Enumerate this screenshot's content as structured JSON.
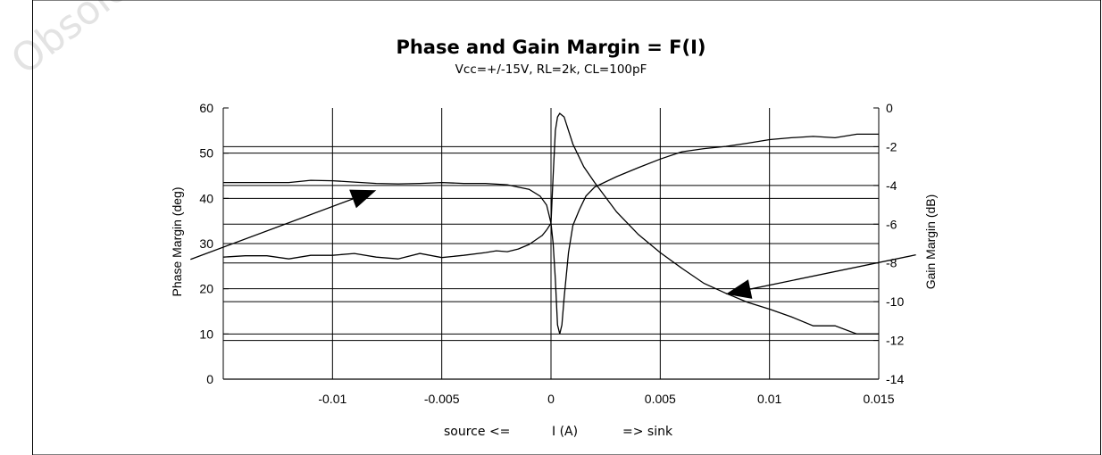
{
  "watermark": "Obsolete",
  "chart_data": {
    "type": "line",
    "title": "Phase and Gain Margin = F(I)",
    "subtitle": "Vcc=+/-15V, RL=2k, CL=100pF",
    "xlabel_parts": [
      "source <=",
      "I (A)",
      "=> sink"
    ],
    "ylabel_left": "Phase Margin (deg)",
    "ylabel_right": "Gain Margin (dB)",
    "xlim": [
      -0.015,
      0.015
    ],
    "ylim_left": [
      0,
      60
    ],
    "ylim_right": [
      -14,
      0
    ],
    "x_ticks": [
      -0.01,
      -0.005,
      0,
      0.005,
      0.01,
      0.015
    ],
    "x_tick_labels": [
      "-0.01",
      "-0.005",
      "0",
      "0.005",
      "0.01",
      "0.015"
    ],
    "x_gridlines": [
      -0.01,
      -0.005,
      0,
      0.005,
      0.01
    ],
    "y_left_ticks": [
      0,
      10,
      20,
      30,
      40,
      50,
      60
    ],
    "y_left_tick_labels": [
      "0",
      "10",
      "20",
      "30",
      "40",
      "50",
      "60"
    ],
    "y_right_ticks": [
      0,
      -2,
      -4,
      -6,
      -8,
      -10,
      -12,
      -14
    ],
    "y_right_tick_labels": [
      "0",
      "-2",
      "-4",
      "-6",
      "-8",
      "-10",
      "-12",
      "-14"
    ],
    "y_right_gridlines": [
      -2,
      -4,
      -6,
      -8,
      -10,
      -12
    ],
    "y_left_gridlines": [
      10,
      20,
      30,
      40,
      50
    ],
    "series": [
      {
        "axis": "left",
        "values": [
          [
            -0.015,
            43.5
          ],
          [
            -0.012,
            43.5
          ],
          [
            -0.011,
            44.0
          ],
          [
            -0.01,
            43.9
          ],
          [
            -0.009,
            43.6
          ],
          [
            -0.008,
            43.3
          ],
          [
            -0.007,
            43.2
          ],
          [
            -0.006,
            43.3
          ],
          [
            -0.005,
            43.5
          ],
          [
            -0.004,
            43.3
          ],
          [
            -0.003,
            43.3
          ],
          [
            -0.002,
            43.0
          ],
          [
            -0.0015,
            42.5
          ],
          [
            -0.001,
            42.0
          ],
          [
            -0.0005,
            40.5
          ],
          [
            -0.0002,
            38.5
          ],
          [
            -0.0001,
            36.5
          ],
          [
            0,
            34.5
          ],
          [
            0.0001,
            30.0
          ],
          [
            0.0002,
            22.0
          ],
          [
            0.0003,
            12.0
          ],
          [
            0.0004,
            10.0
          ],
          [
            0.0005,
            12.0
          ],
          [
            0.0006,
            18.0
          ],
          [
            0.0008,
            28.0
          ],
          [
            0.001,
            34.0
          ],
          [
            0.0013,
            37.5
          ],
          [
            0.0016,
            40.5
          ],
          [
            0.002,
            42.5
          ],
          [
            0.003,
            44.8
          ],
          [
            0.004,
            46.8
          ],
          [
            0.005,
            48.7
          ],
          [
            0.006,
            50.3
          ],
          [
            0.007,
            51.0
          ],
          [
            0.008,
            51.5
          ],
          [
            0.009,
            52.2
          ],
          [
            0.01,
            53.0
          ],
          [
            0.011,
            53.4
          ],
          [
            0.012,
            53.7
          ],
          [
            0.013,
            53.4
          ],
          [
            0.014,
            54.2
          ],
          [
            0.015,
            54.2
          ]
        ]
      },
      {
        "axis": "left",
        "values": [
          [
            -0.015,
            27.0
          ],
          [
            -0.014,
            27.3
          ],
          [
            -0.013,
            27.3
          ],
          [
            -0.012,
            26.6
          ],
          [
            -0.011,
            27.4
          ],
          [
            -0.01,
            27.4
          ],
          [
            -0.009,
            27.8
          ],
          [
            -0.008,
            27.0
          ],
          [
            -0.007,
            26.6
          ],
          [
            -0.006,
            27.8
          ],
          [
            -0.005,
            26.9
          ],
          [
            -0.004,
            27.4
          ],
          [
            -0.003,
            28.0
          ],
          [
            -0.0025,
            28.4
          ],
          [
            -0.002,
            28.2
          ],
          [
            -0.0015,
            28.8
          ],
          [
            -0.001,
            29.8
          ],
          [
            -0.0007,
            30.8
          ],
          [
            -0.0004,
            31.8
          ],
          [
            -0.0002,
            33.0
          ],
          [
            0,
            34.5
          ],
          [
            0.0001,
            45.0
          ],
          [
            0.0002,
            55.0
          ],
          [
            0.0003,
            58.0
          ],
          [
            0.0004,
            58.8
          ],
          [
            0.0006,
            58.0
          ],
          [
            0.0008,
            55.0
          ],
          [
            0.001,
            52.0
          ],
          [
            0.0015,
            47.0
          ],
          [
            0.002,
            43.5
          ],
          [
            0.003,
            37.0
          ],
          [
            0.004,
            32.0
          ],
          [
            0.005,
            28.0
          ],
          [
            0.006,
            24.5
          ],
          [
            0.007,
            21.2
          ],
          [
            0.008,
            19.0
          ],
          [
            0.009,
            17.0
          ],
          [
            0.01,
            15.5
          ],
          [
            0.011,
            13.8
          ],
          [
            0.012,
            11.8
          ],
          [
            0.013,
            11.8
          ],
          [
            0.014,
            10.0
          ],
          [
            0.015,
            10.0
          ]
        ]
      }
    ],
    "annotations": [
      {
        "axis": "left",
        "from": [
          -0.0165,
          26.5
        ],
        "to": [
          -0.008,
          41.8
        ]
      },
      {
        "axis": "left",
        "from": [
          0.0167,
          27.5
        ],
        "to": [
          0.008,
          18.8
        ]
      }
    ]
  }
}
